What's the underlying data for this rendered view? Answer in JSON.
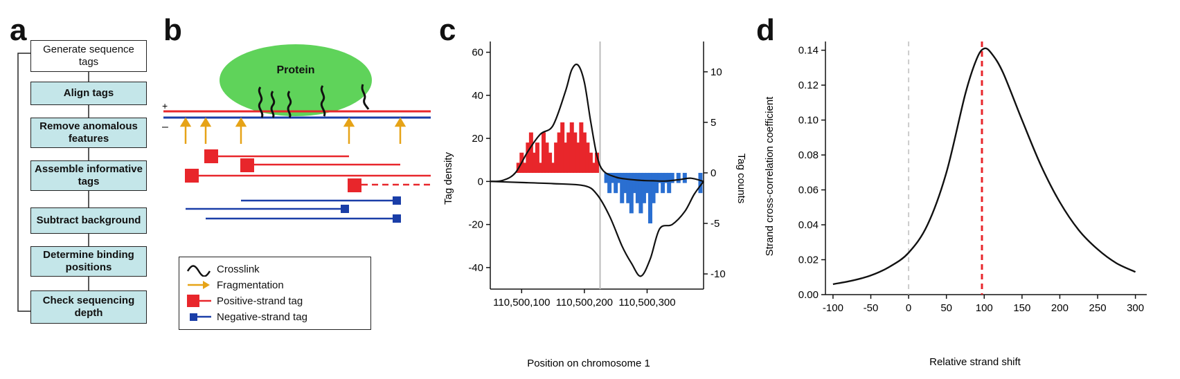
{
  "panels": {
    "a": "a",
    "b": "b",
    "c": "c",
    "d": "d"
  },
  "flow": {
    "steps": [
      {
        "label": "Generate sequence tags",
        "style": "white"
      },
      {
        "label": "Align tags",
        "style": "teal"
      },
      {
        "label": "Remove anomalous features",
        "style": "teal"
      },
      {
        "label": "Assemble informative tags",
        "style": "teal"
      },
      {
        "label": "Subtract background",
        "style": "teal"
      },
      {
        "label": "Determine binding positions",
        "style": "teal"
      },
      {
        "label": "Check sequencing depth",
        "style": "teal"
      }
    ]
  },
  "diagram": {
    "protein_label": "Protein",
    "plus_label": "+",
    "minus_label": "–",
    "colors": {
      "protein": "#5fd35a",
      "positive": "#e8262b",
      "negative": "#1a3ea8",
      "arrow": "#e6a317",
      "crosslink": "#111111"
    },
    "legend": [
      {
        "symbol": "crosslink-icon",
        "label": "Crosslink"
      },
      {
        "symbol": "fragmentation-arrow-icon",
        "label": "Fragmentation"
      },
      {
        "symbol": "positive-strand-tag-icon",
        "label": "Positive-strand tag"
      },
      {
        "symbol": "negative-strand-tag-icon",
        "label": "Negative-strand tag"
      }
    ]
  },
  "chart_data": [
    {
      "type": "line",
      "panel": "c",
      "xlabel": "Position on chromosome 1",
      "ylabel": "Tag density",
      "y2label": "Tag counts",
      "x_tick_labels": [
        "110,500,100",
        "110,500,200",
        "110,500,300"
      ],
      "x_ticks": [
        110500100,
        110500200,
        110500300
      ],
      "xlim": [
        110500050,
        110500390
      ],
      "ylim": [
        -50,
        65
      ],
      "y_ticks": [
        -40,
        -20,
        0,
        20,
        40,
        60
      ],
      "y2lim": [
        -11.5,
        13
      ],
      "y2_ticks": [
        -10,
        -5,
        0,
        5,
        10
      ],
      "divider_x": 110500225,
      "positive_density": {
        "x": [
          110500050,
          110500070,
          110500090,
          110500110,
          110500130,
          110500150,
          110500170,
          110500180,
          110500190,
          110500200,
          110500210,
          110500220,
          110500230,
          110500250,
          110500270,
          110500290,
          110500310,
          110500330,
          110500350,
          110500370,
          110500390
        ],
        "y": [
          0,
          0.5,
          4,
          14,
          22,
          26,
          42,
          52,
          54,
          46,
          28,
          12,
          5,
          2,
          1,
          0.5,
          0.3,
          0.2,
          0.8,
          1.5,
          0
        ]
      },
      "negative_density": {
        "x": [
          110500050,
          110500100,
          110500150,
          110500200,
          110500220,
          110500240,
          110500260,
          110500275,
          110500290,
          110500305,
          110500320,
          110500340,
          110500360,
          110500375,
          110500390
        ],
        "y": [
          0,
          -0.5,
          -1,
          -2,
          -6,
          -16,
          -30,
          -38,
          -44,
          -36,
          -22,
          -20,
          -14,
          -6,
          0
        ]
      },
      "positive_counts": {
        "x": [
          110500095,
          110500100,
          110500105,
          110500110,
          110500115,
          110500120,
          110500125,
          110500130,
          110500135,
          110500140,
          110500145,
          110500150,
          110500155,
          110500160,
          110500165,
          110500170,
          110500175,
          110500180,
          110500185,
          110500190,
          110500195,
          110500200,
          110500205,
          110500210,
          110500215,
          110500220
        ],
        "y": [
          1,
          2,
          1,
          3,
          4,
          2,
          3,
          1,
          4,
          3,
          2,
          1,
          3,
          4,
          5,
          3,
          4,
          5,
          4,
          3,
          5,
          4,
          3,
          2,
          1,
          2
        ]
      },
      "negative_counts": {
        "x": [
          110500235,
          110500240,
          110500245,
          110500250,
          110500255,
          110500260,
          110500265,
          110500270,
          110500275,
          110500280,
          110500285,
          110500290,
          110500295,
          110500300,
          110500305,
          110500310,
          110500315,
          110500320,
          110500325,
          110500330,
          110500335,
          110500340,
          110500350,
          110500360,
          110500385
        ],
        "y": [
          -1,
          -2,
          -1,
          -2,
          -1,
          -3,
          -2,
          -3,
          -4,
          -2,
          -3,
          -4,
          -3,
          -2,
          -5,
          -3,
          -2,
          -1,
          -2,
          -1,
          -2,
          -1,
          -1,
          -1,
          -2
        ]
      },
      "colors": {
        "curve": "#111111",
        "positive": "#e8262b",
        "negative": "#2a6fd1",
        "divider": "#bbbbbb"
      }
    },
    {
      "type": "line",
      "panel": "d",
      "xlabel": "Relative strand shift",
      "ylabel": "Strand cross-correlation coefficient",
      "xlim": [
        -110,
        315
      ],
      "x_ticks": [
        -100,
        -50,
        0,
        50,
        100,
        150,
        200,
        250,
        300
      ],
      "ylim": [
        0,
        0.145
      ],
      "y_ticks": [
        0,
        0.02,
        0.04,
        0.06,
        0.08,
        0.1,
        0.12,
        0.14
      ],
      "y_tick_labels": [
        "0.00",
        "0.02",
        "0.04",
        "0.06",
        "0.08",
        "0.10",
        "0.12",
        "0.14"
      ],
      "x": [
        -100,
        -75,
        -50,
        -25,
        0,
        25,
        50,
        75,
        90,
        100,
        110,
        125,
        150,
        175,
        200,
        225,
        250,
        275,
        300
      ],
      "y": [
        0.006,
        0.008,
        0.011,
        0.016,
        0.024,
        0.04,
        0.07,
        0.115,
        0.135,
        0.141,
        0.138,
        0.127,
        0.1,
        0.074,
        0.053,
        0.037,
        0.026,
        0.018,
        0.013
      ],
      "zero_line_x": 0,
      "peak_line_x": 97,
      "colors": {
        "curve": "#111111",
        "zero": "#cccccc",
        "peak": "#e8262b"
      }
    }
  ]
}
